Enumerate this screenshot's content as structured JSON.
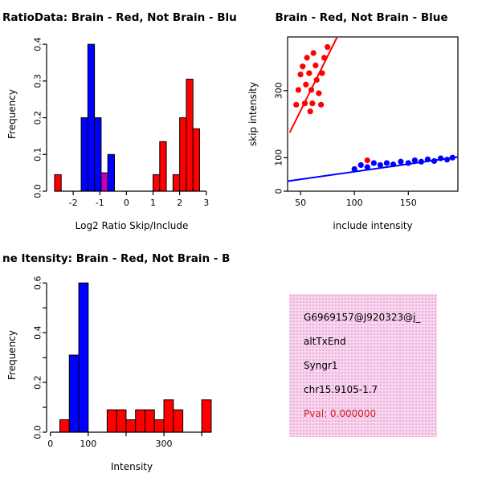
{
  "palette": {
    "red": "#FF0000",
    "blue": "#0000FF",
    "magenta": "#C000C0",
    "axis": "#000000"
  },
  "chart_data": [
    {
      "type": "bar",
      "title": "RatioData: Brain - Red, Not Brain - Blu",
      "xlabel": "Log2 Ratio Skip/Include",
      "ylabel": "Frequency",
      "xlim": [
        -3.0,
        3.4
      ],
      "ylim": [
        0,
        0.42
      ],
      "xticks": {
        "values": [
          -2,
          -1,
          0,
          1,
          2,
          3
        ],
        "labels": [
          "-2",
          "-1",
          "0",
          "1",
          "2",
          "3"
        ]
      },
      "yticks": {
        "values": [
          0,
          0.1,
          0.2,
          0.3,
          0.4
        ],
        "labels": [
          "0.0",
          "0.1",
          "0.2",
          "0.3",
          "0.4"
        ]
      },
      "bars": [
        {
          "x0": -2.7,
          "x1": -2.45,
          "h": 0.045,
          "color": "red"
        },
        {
          "x0": -1.7,
          "x1": -1.45,
          "h": 0.2,
          "color": "blue"
        },
        {
          "x0": -1.45,
          "x1": -1.2,
          "h": 0.4,
          "color": "blue"
        },
        {
          "x0": -1.2,
          "x1": -0.95,
          "h": 0.2,
          "color": "blue"
        },
        {
          "x0": -0.95,
          "x1": -0.7,
          "h": 0.05,
          "color": "magenta"
        },
        {
          "x0": -0.7,
          "x1": -0.45,
          "h": 0.1,
          "color": "blue"
        },
        {
          "x0": 1.0,
          "x1": 1.25,
          "h": 0.045,
          "color": "red"
        },
        {
          "x0": 1.25,
          "x1": 1.5,
          "h": 0.135,
          "color": "red"
        },
        {
          "x0": 1.75,
          "x1": 2.0,
          "h": 0.045,
          "color": "red"
        },
        {
          "x0": 2.0,
          "x1": 2.25,
          "h": 0.2,
          "color": "red"
        },
        {
          "x0": 2.25,
          "x1": 2.5,
          "h": 0.305,
          "color": "red"
        },
        {
          "x0": 2.5,
          "x1": 2.75,
          "h": 0.17,
          "color": "red"
        }
      ]
    },
    {
      "type": "scatter",
      "title": "Brain - Red, Not Brain - Blue",
      "xlabel": "include intensity",
      "ylabel": "skip intensity",
      "xlim": [
        38,
        196
      ],
      "ylim": [
        0,
        460
      ],
      "xticks": {
        "values": [
          50,
          100,
          150
        ],
        "labels": [
          "50",
          "100",
          "150"
        ]
      },
      "yticks": {
        "values": [
          0,
          100,
          300
        ],
        "labels": [
          "0",
          "100",
          "300"
        ]
      },
      "series": [
        {
          "name": "Brain",
          "color": "red",
          "points": [
            [
              46,
              258
            ],
            [
              48,
              302
            ],
            [
              50,
              348
            ],
            [
              52,
              372
            ],
            [
              54,
              262
            ],
            [
              55,
              318
            ],
            [
              56,
              398
            ],
            [
              58,
              352
            ],
            [
              59,
              238
            ],
            [
              60,
              302
            ],
            [
              61,
              262
            ],
            [
              62,
              412
            ],
            [
              64,
              375
            ],
            [
              65,
              332
            ],
            [
              67,
              292
            ],
            [
              69,
              258
            ],
            [
              70,
              352
            ],
            [
              72,
              398
            ],
            [
              75,
              430
            ],
            [
              112,
              92
            ]
          ]
        },
        {
          "name": "Not Brain",
          "color": "blue",
          "points": [
            [
              100,
              66
            ],
            [
              106,
              78
            ],
            [
              112,
              72
            ],
            [
              118,
              84
            ],
            [
              124,
              78
            ],
            [
              130,
              84
            ],
            [
              136,
              80
            ],
            [
              143,
              88
            ],
            [
              150,
              84
            ],
            [
              156,
              92
            ],
            [
              162,
              88
            ],
            [
              168,
              95
            ],
            [
              174,
              90
            ],
            [
              180,
              98
            ],
            [
              186,
              94
            ],
            [
              191,
              100
            ]
          ]
        }
      ],
      "lines": [
        {
          "color": "red",
          "x": [
            40,
            84
          ],
          "y": [
            175,
            460
          ]
        },
        {
          "color": "blue",
          "x": [
            38,
            196
          ],
          "y": [
            30,
            102
          ]
        }
      ]
    },
    {
      "type": "bar",
      "title": "ne Itensity: Brain - Red, Not Brain - B",
      "xlabel": "Intensity",
      "ylabel": "Frequency",
      "xlim": [
        -10,
        440
      ],
      "ylim": [
        0,
        0.62
      ],
      "xticks": {
        "values": [
          0,
          100,
          200,
          300,
          400
        ],
        "labels": [
          "0",
          "100",
          "",
          "300",
          ""
        ]
      },
      "yticks": {
        "values": [
          0,
          0.1,
          0.2,
          0.3,
          0.4,
          0.5,
          0.6
        ],
        "labels": [
          "0.0",
          "",
          "0.2",
          "",
          "0.4",
          "",
          "0.6"
        ]
      },
      "bars": [
        {
          "x0": 25,
          "x1": 50,
          "h": 0.05,
          "color": "red"
        },
        {
          "x0": 50,
          "x1": 75,
          "h": 0.31,
          "color": "blue"
        },
        {
          "x0": 75,
          "x1": 100,
          "h": 0.6,
          "color": "blue"
        },
        {
          "x0": 150,
          "x1": 175,
          "h": 0.09,
          "color": "red"
        },
        {
          "x0": 175,
          "x1": 200,
          "h": 0.09,
          "color": "red"
        },
        {
          "x0": 200,
          "x1": 225,
          "h": 0.05,
          "color": "red"
        },
        {
          "x0": 225,
          "x1": 250,
          "h": 0.09,
          "color": "red"
        },
        {
          "x0": 250,
          "x1": 275,
          "h": 0.09,
          "color": "red"
        },
        {
          "x0": 275,
          "x1": 300,
          "h": 0.05,
          "color": "red"
        },
        {
          "x0": 300,
          "x1": 325,
          "h": 0.13,
          "color": "red"
        },
        {
          "x0": 325,
          "x1": 350,
          "h": 0.09,
          "color": "red"
        },
        {
          "x0": 400,
          "x1": 425,
          "h": 0.13,
          "color": "red"
        }
      ]
    }
  ],
  "info_box": {
    "bg": "#F8D8EE",
    "dot": "#E9A6DC",
    "text_color": "#000000",
    "pval_color": "#CC2222",
    "lines": [
      "G6969157@J920323@j_",
      "altTxEnd",
      "Syngr1",
      "chr15.9105-1.7"
    ],
    "pval": "Pval: 0.000000"
  }
}
